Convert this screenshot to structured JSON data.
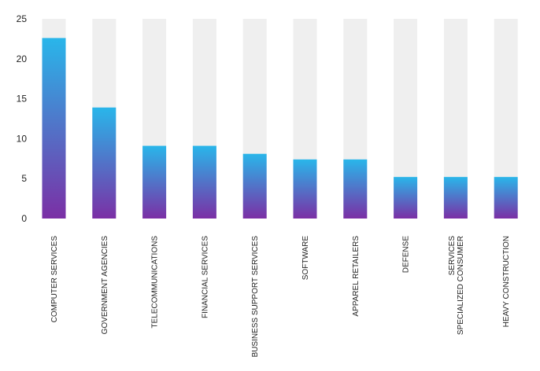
{
  "chart_data": {
    "type": "bar",
    "title": "",
    "xlabel": "",
    "ylabel": "",
    "ylim": [
      0,
      25
    ],
    "yticks": [
      0,
      5,
      10,
      15,
      20,
      25
    ],
    "grid": false,
    "categories": [
      [
        "COMPUTER SERVICES"
      ],
      [
        "GOVERNMENT AGENCIES"
      ],
      [
        "TELECOMMUNICATIONS"
      ],
      [
        "FINANCIAL SERVICES"
      ],
      [
        "BUSINESS SUPPORT SERVICES"
      ],
      [
        "SOFTWARE"
      ],
      [
        "APPAREL RETAILERS"
      ],
      [
        "DEFENSE"
      ],
      [
        "SPECIALIZED CONSUMER",
        "SERVICES"
      ],
      [
        "HEAVY CONSTRUCTION"
      ]
    ],
    "values": [
      22.6,
      13.9,
      9.1,
      9.1,
      8.1,
      7.4,
      7.4,
      5.2,
      5.2,
      5.2
    ],
    "colors": {
      "bar_top": "#29b6ea",
      "bar_bottom": "#7b2fa5",
      "track": "#efefef"
    }
  }
}
